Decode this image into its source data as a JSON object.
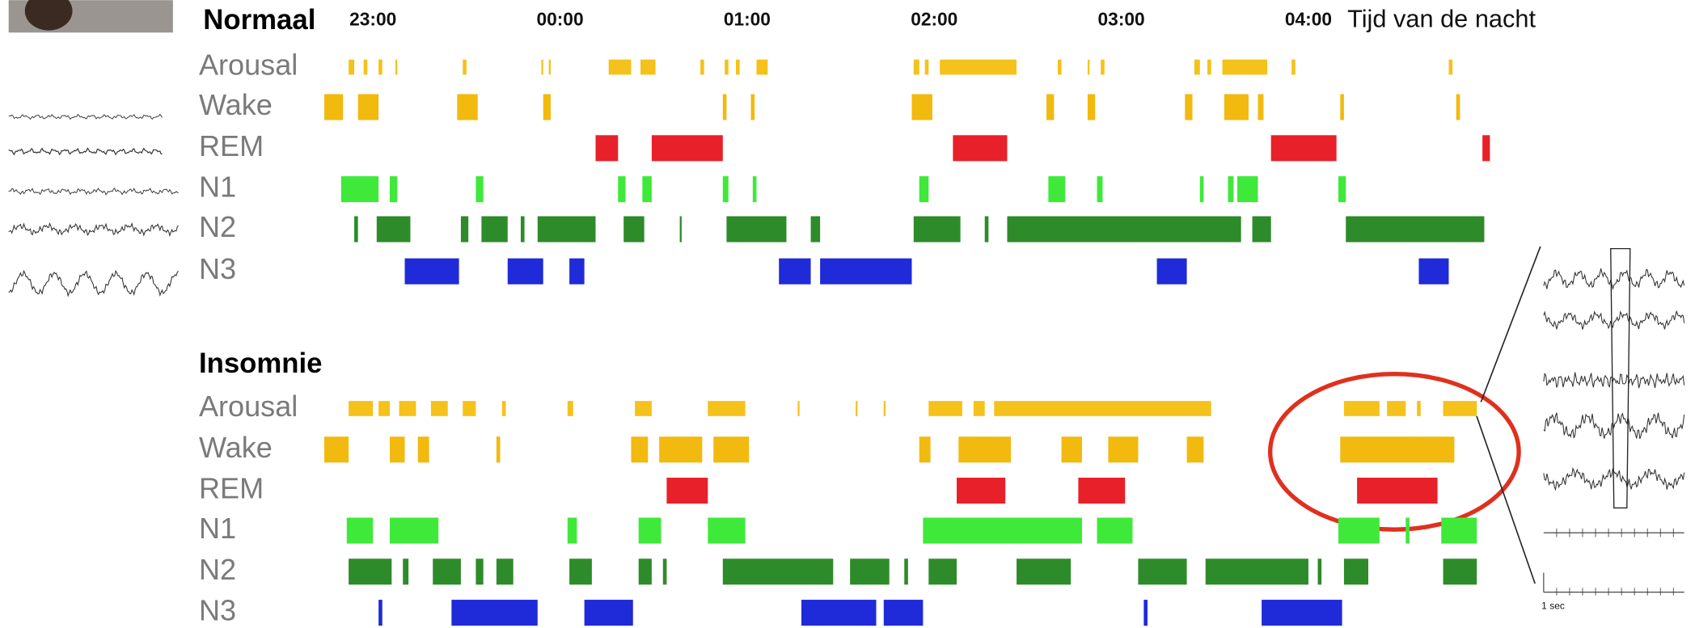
{
  "chart_data": [
    {
      "type": "hypnogram",
      "title": "Normaal",
      "xlabel": "Tijd van de nacht",
      "xlim": [
        22.74,
        28.98
      ],
      "xticks": [
        {
          "value": 23,
          "label": "23:00"
        },
        {
          "value": 24,
          "label": "00:00"
        },
        {
          "value": 25,
          "label": "01:00"
        },
        {
          "value": 26,
          "label": "02:00"
        },
        {
          "value": 27,
          "label": "03:00"
        },
        {
          "value": 28,
          "label": "04:00"
        }
      ],
      "series": [
        {
          "name": "Arousal",
          "color": "#f5c21b",
          "segments": [
            [
              22.87,
              22.9
            ],
            [
              22.95,
              22.97
            ],
            [
              23.03,
              23.05
            ],
            [
              23.12,
              23.13
            ],
            [
              23.48,
              23.5
            ],
            [
              23.9,
              23.91
            ],
            [
              23.94,
              23.95
            ],
            [
              24.26,
              24.38
            ],
            [
              24.43,
              24.51
            ],
            [
              24.75,
              24.77
            ],
            [
              24.88,
              24.9
            ],
            [
              24.94,
              24.96
            ],
            [
              25.05,
              25.11
            ],
            [
              25.89,
              25.92
            ],
            [
              25.95,
              25.97
            ],
            [
              26.03,
              26.44
            ],
            [
              26.66,
              26.68
            ],
            [
              26.82,
              26.83
            ],
            [
              26.89,
              26.91
            ],
            [
              27.39,
              27.42
            ],
            [
              27.46,
              27.48
            ],
            [
              27.54,
              27.78
            ],
            [
              27.91,
              27.93
            ],
            [
              28.75,
              28.77
            ]
          ]
        },
        {
          "name": "Wake",
          "color": "#f2b90f",
          "segments": [
            [
              22.74,
              22.84
            ],
            [
              22.92,
              23.03
            ],
            [
              23.45,
              23.56
            ],
            [
              23.91,
              23.95
            ],
            [
              24.87,
              24.89
            ],
            [
              25.02,
              25.04
            ],
            [
              25.88,
              25.99
            ],
            [
              26.6,
              26.64
            ],
            [
              26.82,
              26.86
            ],
            [
              27.34,
              27.38
            ],
            [
              27.55,
              27.68
            ],
            [
              27.73,
              27.76
            ],
            [
              28.17,
              28.19
            ],
            [
              28.79,
              28.81
            ]
          ]
        },
        {
          "name": "REM",
          "color": "#e8202a",
          "segments": [
            [
              24.19,
              24.31
            ],
            [
              24.49,
              24.87
            ],
            [
              26.1,
              26.39
            ],
            [
              27.8,
              28.15
            ],
            [
              28.93,
              28.97
            ]
          ]
        },
        {
          "name": "N1",
          "color": "#3fe93a",
          "segments": [
            [
              22.83,
              23.03
            ],
            [
              23.09,
              23.13
            ],
            [
              23.55,
              23.59
            ],
            [
              24.31,
              24.35
            ],
            [
              24.44,
              24.49
            ],
            [
              24.87,
              24.9
            ],
            [
              25.03,
              25.05
            ],
            [
              25.92,
              25.97
            ],
            [
              26.61,
              26.7
            ],
            [
              26.87,
              26.9
            ],
            [
              27.42,
              27.44
            ],
            [
              27.57,
              27.6
            ],
            [
              27.62,
              27.73
            ],
            [
              28.16,
              28.2
            ]
          ]
        },
        {
          "name": "N2",
          "color": "#2e8b2a",
          "segments": [
            [
              22.9,
              22.92
            ],
            [
              23.02,
              23.2
            ],
            [
              23.47,
              23.51
            ],
            [
              23.58,
              23.72
            ],
            [
              23.79,
              23.81
            ],
            [
              23.88,
              24.19
            ],
            [
              24.34,
              24.45
            ],
            [
              24.64,
              24.65
            ],
            [
              24.89,
              25.21
            ],
            [
              25.34,
              25.39
            ],
            [
              25.89,
              26.14
            ],
            [
              26.27,
              26.29
            ],
            [
              26.39,
              27.64
            ],
            [
              27.7,
              27.8
            ],
            [
              28.2,
              28.94
            ]
          ]
        },
        {
          "name": "N3",
          "color": "#1f2bd8",
          "segments": [
            [
              23.17,
              23.46
            ],
            [
              23.72,
              23.91
            ],
            [
              24.05,
              24.13
            ],
            [
              25.17,
              25.34
            ],
            [
              25.39,
              25.88
            ],
            [
              27.19,
              27.35
            ],
            [
              28.59,
              28.75
            ]
          ]
        }
      ]
    },
    {
      "type": "hypnogram",
      "title": "Insomnie",
      "scale_label": "1 sec",
      "xlim": [
        22.74,
        28.98
      ],
      "series": [
        {
          "name": "Arousal",
          "color": "#f5c21b",
          "segments": [
            [
              22.87,
              23.0
            ],
            [
              23.03,
              23.09
            ],
            [
              23.14,
              23.23
            ],
            [
              23.31,
              23.4
            ],
            [
              23.48,
              23.55
            ],
            [
              23.69,
              23.71
            ],
            [
              24.04,
              24.07
            ],
            [
              24.4,
              24.49
            ],
            [
              24.79,
              24.99
            ],
            [
              25.27,
              25.28
            ],
            [
              25.58,
              25.59
            ],
            [
              25.73,
              25.74
            ],
            [
              25.97,
              26.15
            ],
            [
              26.21,
              26.27
            ],
            [
              26.32,
              27.48
            ],
            [
              28.19,
              28.38
            ],
            [
              28.42,
              28.52
            ],
            [
              28.58,
              28.6
            ],
            [
              28.72,
              28.9
            ]
          ]
        },
        {
          "name": "Wake",
          "color": "#f2b90f",
          "segments": [
            [
              22.74,
              22.87
            ],
            [
              23.09,
              23.17
            ],
            [
              23.24,
              23.3
            ],
            [
              23.66,
              23.68
            ],
            [
              24.38,
              24.47
            ],
            [
              24.53,
              24.76
            ],
            [
              24.82,
              25.01
            ],
            [
              25.92,
              25.98
            ],
            [
              26.13,
              26.41
            ],
            [
              26.68,
              26.79
            ],
            [
              26.93,
              27.09
            ],
            [
              27.35,
              27.44
            ],
            [
              28.17,
              28.78
            ]
          ]
        },
        {
          "name": "REM",
          "color": "#e8202a",
          "segments": [
            [
              24.57,
              24.79
            ],
            [
              26.12,
              26.38
            ],
            [
              26.77,
              27.02
            ],
            [
              28.26,
              28.69
            ]
          ]
        },
        {
          "name": "N1",
          "color": "#3fe93a",
          "segments": [
            [
              22.86,
              23.0
            ],
            [
              23.09,
              23.35
            ],
            [
              24.04,
              24.09
            ],
            [
              24.42,
              24.54
            ],
            [
              24.79,
              24.99
            ],
            [
              25.94,
              26.79
            ],
            [
              26.87,
              27.06
            ],
            [
              28.16,
              28.38
            ],
            [
              28.52,
              28.54
            ],
            [
              28.71,
              28.9
            ]
          ]
        },
        {
          "name": "N2",
          "color": "#2e8b2a",
          "segments": [
            [
              22.87,
              23.1
            ],
            [
              23.16,
              23.19
            ],
            [
              23.32,
              23.47
            ],
            [
              23.55,
              23.59
            ],
            [
              23.66,
              23.75
            ],
            [
              24.05,
              24.17
            ],
            [
              24.42,
              24.49
            ],
            [
              24.55,
              24.57
            ],
            [
              24.87,
              25.46
            ],
            [
              25.55,
              25.76
            ],
            [
              25.84,
              25.86
            ],
            [
              25.97,
              26.12
            ],
            [
              26.44,
              26.73
            ],
            [
              27.09,
              27.35
            ],
            [
              27.45,
              28.0
            ],
            [
              28.05,
              28.07
            ],
            [
              28.19,
              28.32
            ],
            [
              28.72,
              28.9
            ]
          ]
        },
        {
          "name": "N3",
          "color": "#1f2bd8",
          "segments": [
            [
              23.03,
              23.05
            ],
            [
              23.42,
              23.88
            ],
            [
              24.13,
              24.39
            ],
            [
              25.29,
              25.69
            ],
            [
              25.73,
              25.94
            ],
            [
              27.12,
              27.14
            ],
            [
              27.75,
              28.18
            ]
          ]
        }
      ]
    }
  ]
}
